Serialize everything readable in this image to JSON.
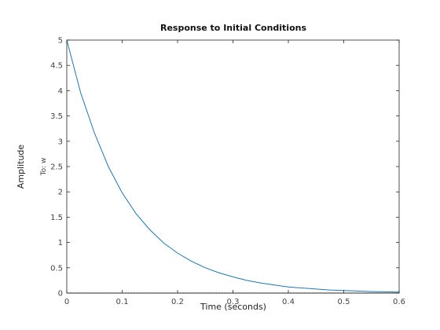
{
  "chart_data": {
    "type": "line",
    "title": "Response to Initial Conditions",
    "xlabel": "Time (seconds)",
    "ylabel": "Amplitude",
    "channel_label": "To: w",
    "xlim": [
      0,
      0.6
    ],
    "ylim": [
      0,
      5
    ],
    "x_ticks": [
      "0",
      "0.1",
      "0.2",
      "0.3",
      "0.4",
      "0.5",
      "0.6"
    ],
    "y_ticks": [
      "0",
      "0.5",
      "1",
      "1.5",
      "2",
      "2.5",
      "3",
      "3.5",
      "4",
      "4.5",
      "5"
    ],
    "grid": false,
    "series": [
      {
        "x": [
          0,
          0.025,
          0.05,
          0.075,
          0.1,
          0.125,
          0.15,
          0.175,
          0.2,
          0.225,
          0.25,
          0.275,
          0.3,
          0.325,
          0.35,
          0.375,
          0.4,
          0.425,
          0.45,
          0.475,
          0.5,
          0.525,
          0.55,
          0.575,
          0.6
        ],
        "y": [
          5.0,
          3.96,
          3.16,
          2.5,
          1.98,
          1.57,
          1.25,
          0.99,
          0.79,
          0.63,
          0.5,
          0.4,
          0.32,
          0.25,
          0.2,
          0.16,
          0.12,
          0.1,
          0.08,
          0.06,
          0.05,
          0.04,
          0.03,
          0.025,
          0.02
        ]
      }
    ],
    "colors": {
      "line": "#1f77b4",
      "zero_line": "#000000",
      "axes": "#262626"
    }
  }
}
